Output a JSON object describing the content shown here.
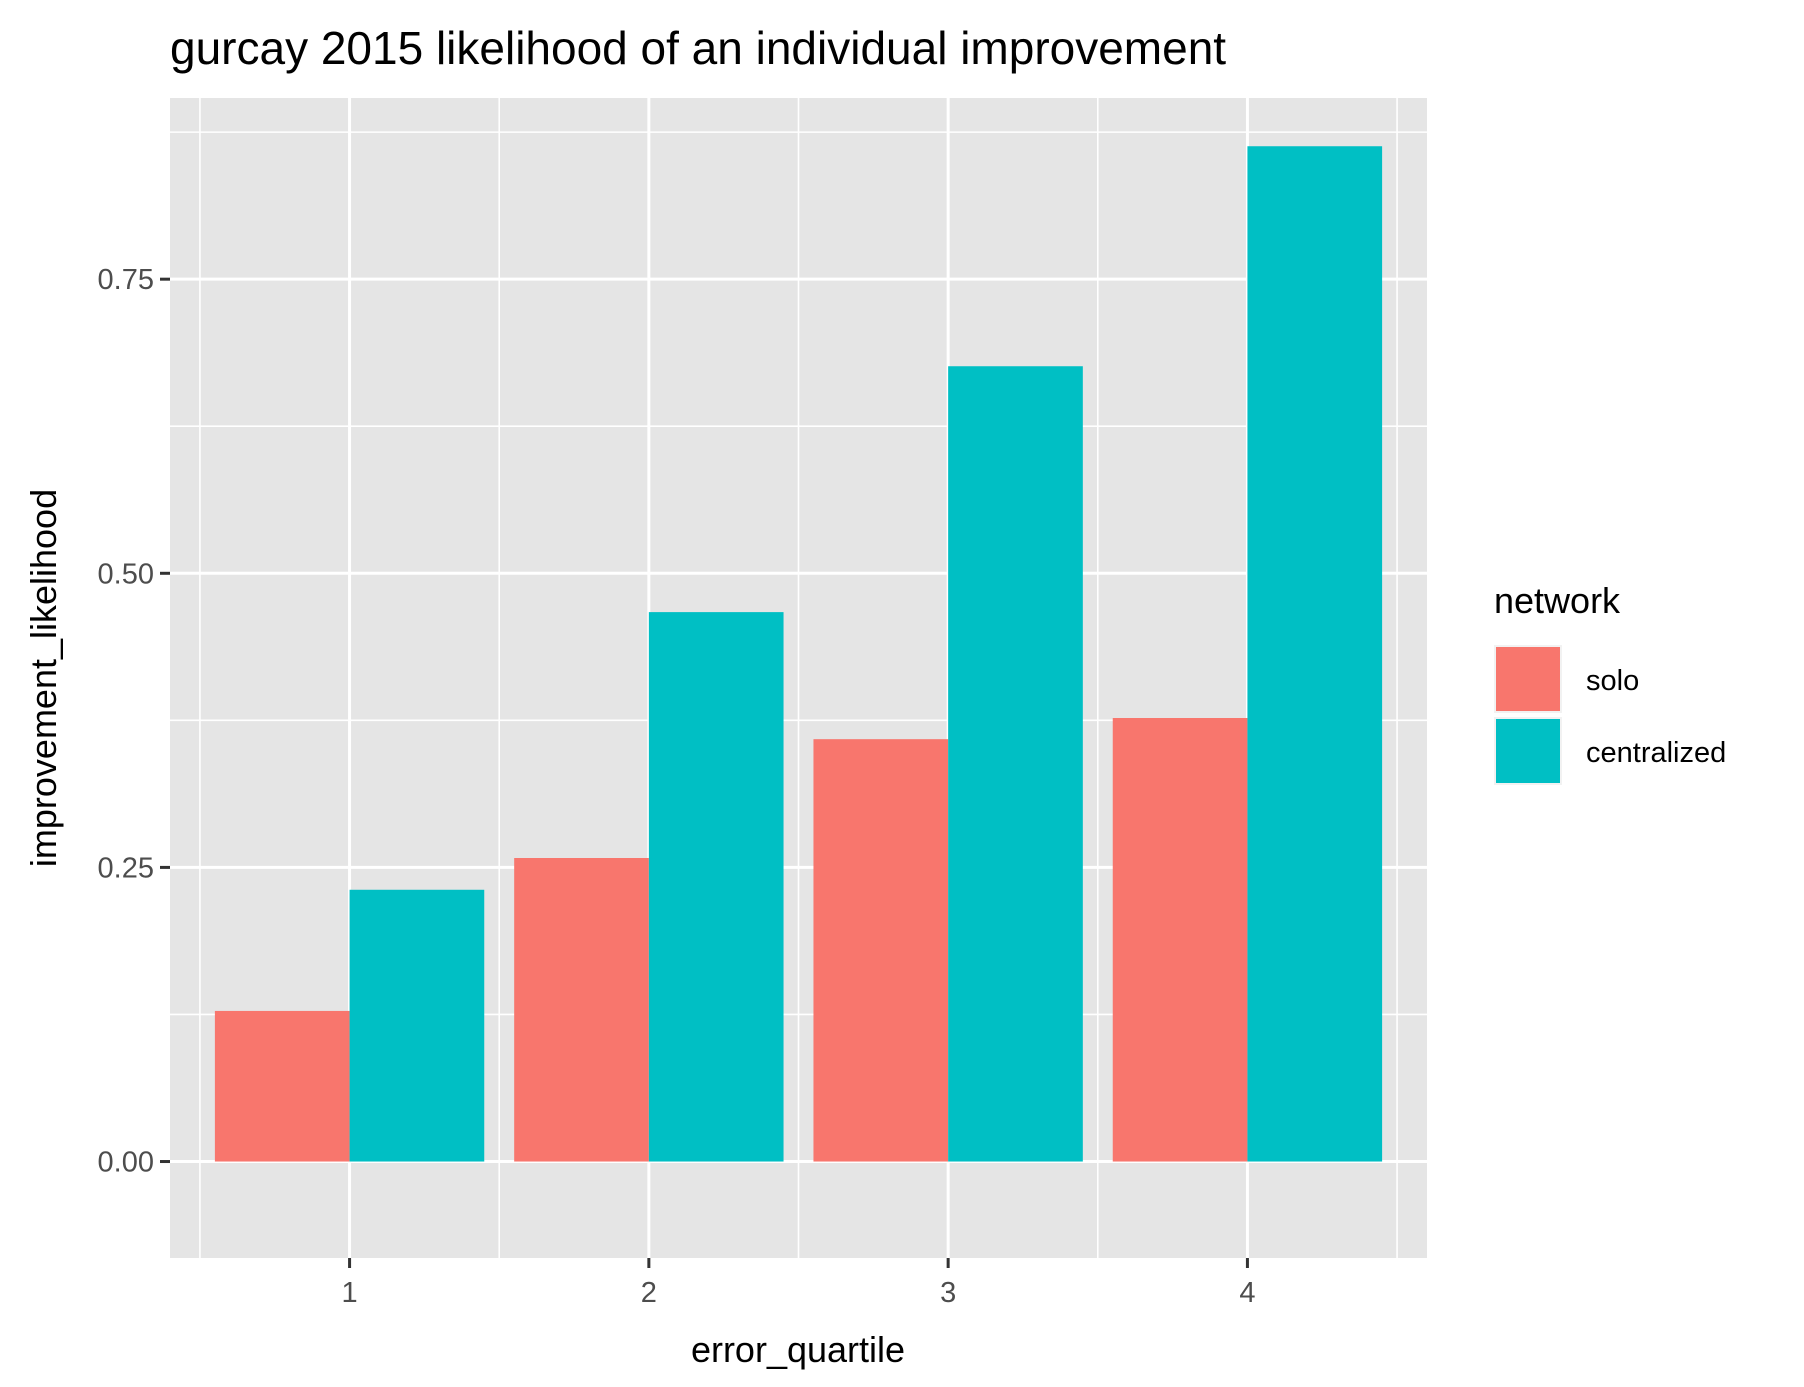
{
  "chart_data": {
    "type": "bar",
    "title": "gurcay 2015 likelihood of an individual improvement",
    "xlabel": "error_quartile",
    "ylabel": "improvement_likelihood",
    "categories": [
      "1",
      "2",
      "3",
      "4"
    ],
    "series": [
      {
        "name": "solo",
        "values": [
          0.128,
          0.258,
          0.359,
          0.377
        ],
        "color": "#F8766D"
      },
      {
        "name": "centralized",
        "values": [
          0.231,
          0.467,
          0.676,
          0.863
        ],
        "color": "#00BFC4"
      }
    ],
    "ylim": [
      -0.082,
      0.904
    ],
    "yticks": [
      0.0,
      0.25,
      0.5,
      0.75
    ],
    "ytick_labels": [
      "0.00",
      "0.25",
      "0.50",
      "0.75"
    ],
    "grid": true,
    "legend": {
      "title": "network",
      "position": "right"
    },
    "colors": {
      "panel_background": "#E5E5E5",
      "grid": "#FFFFFF",
      "text": "#4D4D4D"
    }
  }
}
